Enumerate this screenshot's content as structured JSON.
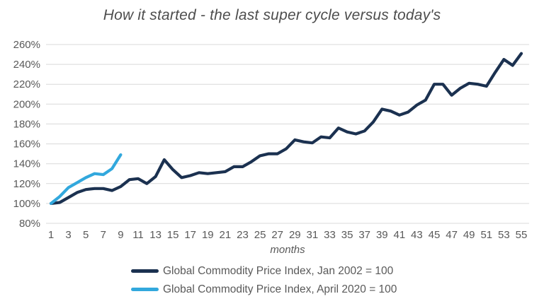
{
  "title": "How it started - the last super cycle versus today's",
  "colors": {
    "grid": "#d9d9d9",
    "axis_text": "#595959",
    "title_text": "#4d4d4d",
    "series_navy": "#1b3150",
    "series_blue": "#32a8dd"
  },
  "chart_data": {
    "type": "line",
    "title": "How it started - the last super cycle versus today's",
    "xlabel": "months",
    "ylabel": "",
    "ylim": [
      80,
      260
    ],
    "y_ticks": [
      "80%",
      "100%",
      "120%",
      "140%",
      "160%",
      "180%",
      "200%",
      "220%",
      "240%",
      "260%"
    ],
    "x_ticks": [
      1,
      3,
      5,
      7,
      9,
      11,
      13,
      15,
      17,
      19,
      21,
      23,
      25,
      27,
      29,
      31,
      33,
      35,
      37,
      39,
      41,
      43,
      45,
      47,
      49,
      51,
      53,
      55
    ],
    "grid": true,
    "legend_position": "bottom",
    "series": [
      {
        "name": "Global Commodity Price Index, Jan 2002 = 100",
        "color": "#1b3150",
        "x_start": 1,
        "values": [
          100,
          101,
          106,
          111,
          114,
          115,
          115,
          113,
          117,
          124,
          125,
          120,
          127,
          144,
          134,
          126,
          128,
          131,
          130,
          131,
          132,
          137,
          137,
          142,
          148,
          150,
          150,
          155,
          164,
          162,
          161,
          167,
          166,
          176,
          172,
          170,
          173,
          182,
          195,
          193,
          189,
          192,
          199,
          204,
          220,
          220,
          209,
          216,
          221,
          220,
          218,
          232,
          245,
          239,
          251
        ]
      },
      {
        "name": "Global Commodity Price Index, April 2020 = 100",
        "color": "#32a8dd",
        "x_start": 1,
        "values": [
          100,
          107,
          116,
          121,
          126,
          130,
          129,
          135,
          149
        ]
      }
    ]
  }
}
